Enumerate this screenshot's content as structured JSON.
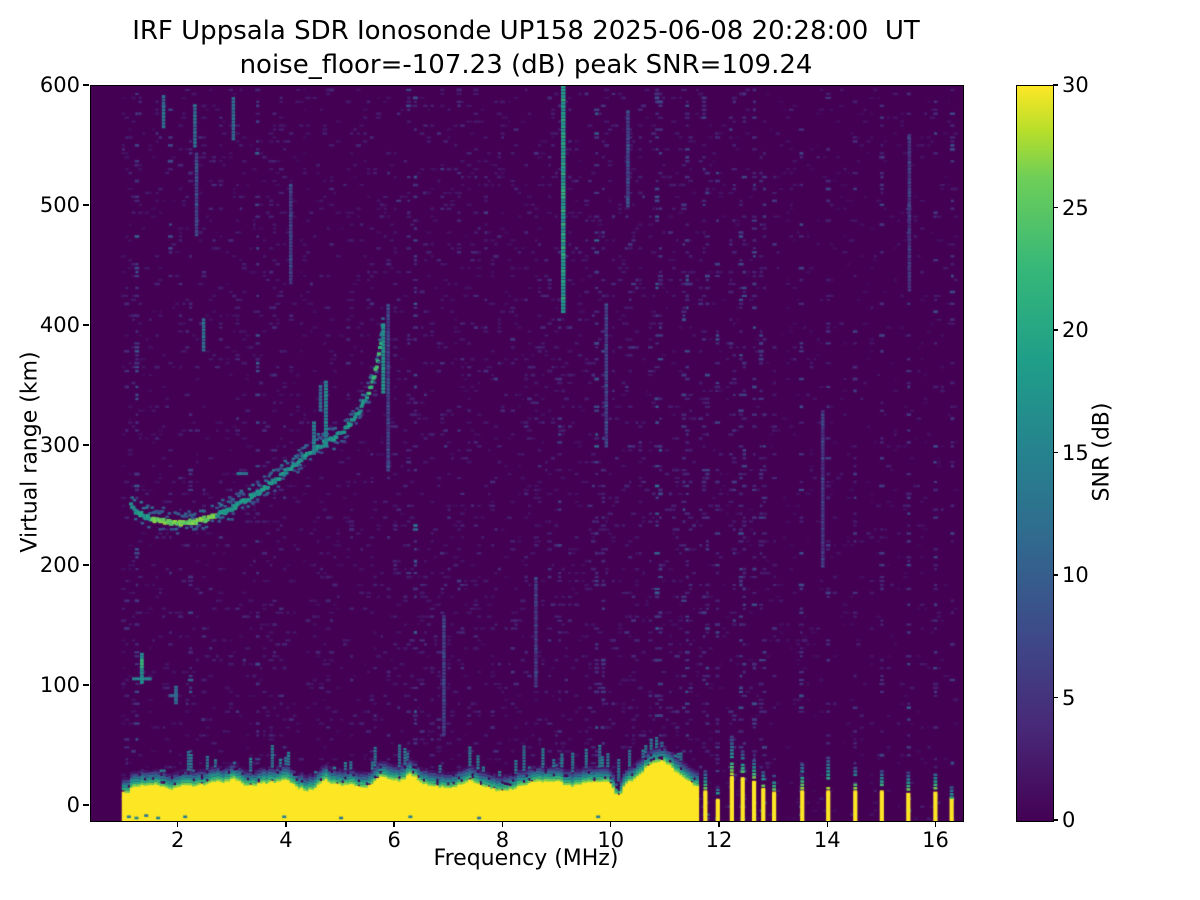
{
  "chart_data": {
    "type": "heatmap",
    "title_line1": "IRF Uppsala SDR Ionosonde UP158 2025-06-08 20:28:00  UT",
    "title_line2": "noise_floor=-107.23 (dB) peak SNR=109.24",
    "xlabel": "Frequency (MHz)",
    "ylabel": "Virtual range (km)",
    "colorbar_label": "SNR (dB)",
    "xlim": [
      0.38,
      16.49
    ],
    "ylim": [
      -12.5,
      600
    ],
    "x_ticks": [
      2,
      4,
      6,
      8,
      10,
      12,
      14,
      16
    ],
    "y_ticks": [
      0,
      100,
      200,
      300,
      400,
      500,
      600
    ],
    "colorbar_ticks": [
      0,
      5,
      10,
      15,
      20,
      25,
      30
    ],
    "colorbar_range": [
      0,
      30
    ],
    "colormap": "viridis",
    "viridis_stops": [
      [
        0.0,
        "#440154"
      ],
      [
        0.125,
        "#482878"
      ],
      [
        0.25,
        "#3e4989"
      ],
      [
        0.375,
        "#31688e"
      ],
      [
        0.5,
        "#26828e"
      ],
      [
        0.625,
        "#1f9e89"
      ],
      [
        0.75,
        "#35b779"
      ],
      [
        0.875,
        "#6ece58"
      ],
      [
        0.9375,
        "#b5de2b"
      ],
      [
        1.0,
        "#fde725"
      ]
    ],
    "noise": {
      "seed": 20250608,
      "col_step": 0.062,
      "row_step": 3.3,
      "freq_start": 0.98,
      "freq_end": 16.36,
      "continuous_end": 11.65
    },
    "trace": {
      "points": [
        [
          1.12,
          250
        ],
        [
          1.25,
          244
        ],
        [
          1.45,
          240
        ],
        [
          1.7,
          237
        ],
        [
          2.0,
          236
        ],
        [
          2.3,
          237
        ],
        [
          2.6,
          240
        ],
        [
          2.9,
          246
        ],
        [
          3.2,
          254
        ],
        [
          3.5,
          262
        ],
        [
          3.8,
          272
        ],
        [
          4.1,
          283
        ],
        [
          4.35,
          292
        ],
        [
          4.6,
          300
        ],
        [
          4.85,
          306
        ],
        [
          5.1,
          315
        ],
        [
          5.3,
          326
        ],
        [
          5.5,
          342
        ],
        [
          5.62,
          358
        ],
        [
          5.7,
          375
        ],
        [
          5.76,
          392
        ],
        [
          5.79,
          403
        ]
      ],
      "snr": 17,
      "bright": [
        {
          "f0": 1.5,
          "f1": 2.7,
          "v": 26
        },
        {
          "f0": 5.52,
          "f1": 5.74,
          "v": 23
        }
      ]
    },
    "spread_segments": [
      {
        "f": 4.72,
        "a0": 300,
        "a1": 356,
        "v": 15,
        "w": 4
      },
      {
        "f": 4.5,
        "a0": 294,
        "a1": 322,
        "v": 14,
        "w": 4
      },
      {
        "f": 4.62,
        "a0": 330,
        "a1": 352,
        "v": 12,
        "w": 3.5
      },
      {
        "f": 5.78,
        "a0": 345,
        "a1": 402,
        "v": 17,
        "w": 4
      }
    ],
    "interference_streaks": [
      {
        "f": 9.105,
        "a0": 412,
        "a1": 600,
        "v": 19,
        "vjit": 3,
        "w": 4.5
      },
      {
        "f": 2.3,
        "a0": 550,
        "a1": 584,
        "v": 12,
        "w": 3.5
      },
      {
        "f": 3.01,
        "a0": 556,
        "a1": 592,
        "v": 13,
        "w": 3.5
      },
      {
        "f": 1.72,
        "a0": 566,
        "a1": 592,
        "v": 12,
        "w": 3.5
      },
      {
        "f": 2.46,
        "a0": 380,
        "a1": 406,
        "v": 13,
        "w": 3.5
      },
      {
        "f": 2.33,
        "a0": 476,
        "a1": 544,
        "v": 8,
        "w": 3.5
      },
      {
        "f": 4.07,
        "a0": 436,
        "a1": 520,
        "v": 7,
        "w": 3.5
      },
      {
        "f": 5.87,
        "a0": 280,
        "a1": 420,
        "v": 7,
        "w": 3.5
      },
      {
        "f": 6.9,
        "a0": 60,
        "a1": 160,
        "v": 7,
        "w": 3.5
      },
      {
        "f": 8.6,
        "a0": 100,
        "a1": 190,
        "v": 6,
        "w": 3.5
      },
      {
        "f": 9.9,
        "a0": 300,
        "a1": 420,
        "v": 7,
        "w": 3.5
      },
      {
        "f": 10.3,
        "a0": 500,
        "a1": 580,
        "v": 8,
        "w": 3.5
      },
      {
        "f": 15.5,
        "a0": 430,
        "a1": 560,
        "v": 6,
        "w": 3.5
      },
      {
        "f": 13.9,
        "a0": 200,
        "a1": 330,
        "v": 6,
        "w": 3.5
      }
    ],
    "h_dashes": [
      {
        "f0": 1.17,
        "f1": 1.48,
        "a": 106,
        "v": 15
      },
      {
        "f0": 1.86,
        "f1": 2.0,
        "a": 92,
        "v": 11
      },
      {
        "f0": 3.1,
        "f1": 3.25,
        "a": 277,
        "v": 13
      }
    ],
    "blobs": [
      {
        "f": 1.32,
        "a0": 103,
        "a1": 128,
        "v": 16,
        "b0": 115,
        "b1": 123,
        "bv": 22
      },
      {
        "f": 1.95,
        "a0": 86,
        "a1": 100,
        "v": 12,
        "b0": 0,
        "b1": 0,
        "bv": 12
      }
    ],
    "ground_clutter": {
      "f0": 0.98,
      "f1": 11.63,
      "base_top": 17,
      "fringe": 12,
      "spike_prob": 0.2,
      "spike_km": 20,
      "notch_f": 10.12,
      "notch_depth": 11,
      "notch_s": 0.09,
      "bumps": [
        {
          "c": 2.1,
          "a": 5,
          "s": 0.15
        },
        {
          "c": 3.05,
          "a": 5,
          "s": 0.12
        },
        {
          "c": 4.0,
          "a": 4,
          "s": 0.1
        },
        {
          "c": 4.7,
          "a": 7,
          "s": 0.15
        },
        {
          "c": 5.75,
          "a": 9,
          "s": 0.18
        },
        {
          "c": 6.3,
          "a": 5,
          "s": 0.12
        },
        {
          "c": 7.4,
          "a": 4,
          "s": 0.12
        },
        {
          "c": 9.0,
          "a": 4,
          "s": 0.15
        },
        {
          "c": 10.85,
          "a": 20,
          "s": 0.5
        }
      ]
    },
    "band_specks": [
      {
        "f": 1.08,
        "a": -9,
        "v": 14
      },
      {
        "f": 1.22,
        "a": -10,
        "v": 16
      },
      {
        "f": 1.4,
        "a": -8,
        "v": 13
      },
      {
        "f": 1.62,
        "a": -10,
        "v": 15
      },
      {
        "f": 2.12,
        "a": -9,
        "v": 14
      },
      {
        "f": 3.95,
        "a": -9,
        "v": 15
      },
      {
        "f": 5.0,
        "a": -10,
        "v": 13
      },
      {
        "f": 6.28,
        "a": -9,
        "v": 15
      },
      {
        "f": 7.55,
        "a": -10,
        "v": 13
      },
      {
        "f": 9.75,
        "a": -9,
        "v": 14
      }
    ],
    "rf_bars": [
      {
        "f": 11.73,
        "top": 12,
        "tip": 30
      },
      {
        "f": 11.96,
        "top": 5,
        "tip": 16
      },
      {
        "f": 12.22,
        "top": 24,
        "tip": 58
      },
      {
        "f": 12.42,
        "top": 23,
        "tip": 46
      },
      {
        "f": 12.63,
        "top": 21,
        "tip": 40
      },
      {
        "f": 12.8,
        "top": 14,
        "tip": 30
      },
      {
        "f": 13.0,
        "top": 11,
        "tip": 26
      },
      {
        "f": 13.52,
        "top": 12,
        "tip": 38
      },
      {
        "f": 14.0,
        "top": 12,
        "tip": 42
      },
      {
        "f": 14.5,
        "top": 12,
        "tip": 34
      },
      {
        "f": 14.99,
        "top": 12,
        "tip": 30
      },
      {
        "f": 15.48,
        "top": 11,
        "tip": 28
      },
      {
        "f": 15.98,
        "top": 12,
        "tip": 30
      },
      {
        "f": 16.28,
        "top": 7,
        "tip": 18,
        "tip_v": 14
      }
    ],
    "colors": {
      "background": "#ffffff",
      "plot_low": "#440154",
      "plot_high": "#fde725",
      "spine": "#000000"
    }
  }
}
